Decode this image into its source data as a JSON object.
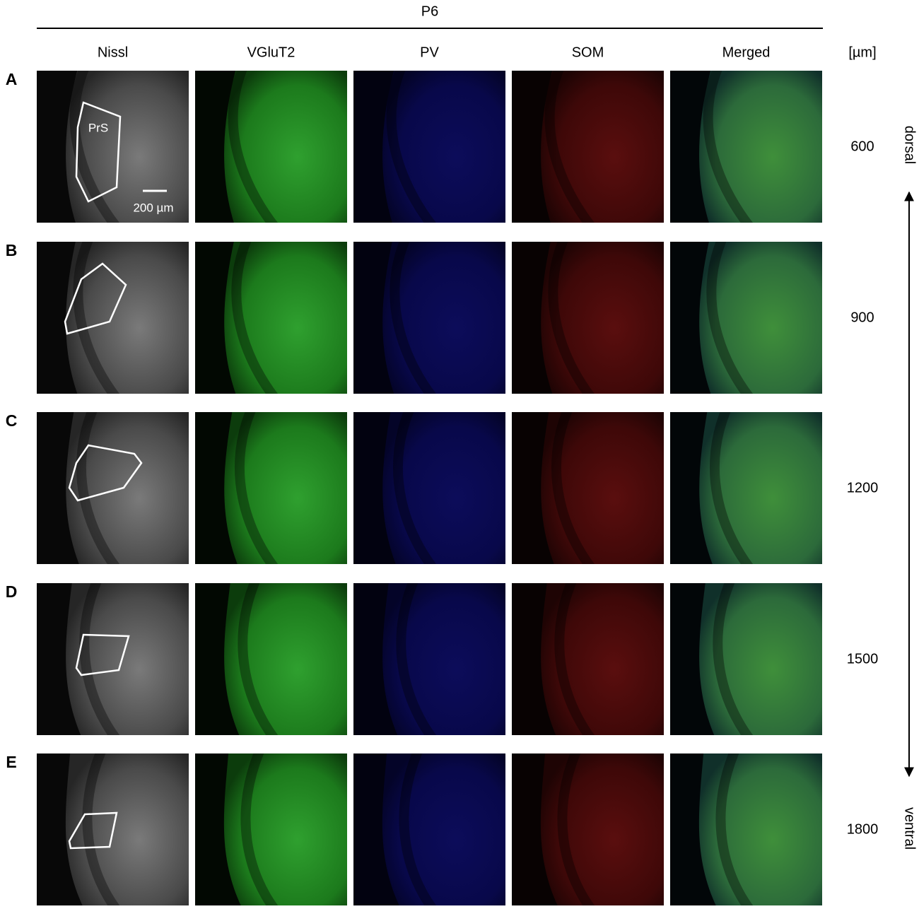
{
  "header": {
    "title": "P6",
    "unit": "[µm]"
  },
  "columns": [
    "Nissl",
    "VGluT2",
    "PV",
    "SOM",
    "Merged"
  ],
  "rows": [
    {
      "label": "A",
      "depth": 600
    },
    {
      "label": "B",
      "depth": 900
    },
    {
      "label": "C",
      "depth": 1200
    },
    {
      "label": "D",
      "depth": 1500
    },
    {
      "label": "E",
      "depth": 1800
    }
  ],
  "annotations": {
    "region": "PrS",
    "scale_bar": "200 µm",
    "dorsal": "dorsal",
    "ventral": "ventral"
  }
}
